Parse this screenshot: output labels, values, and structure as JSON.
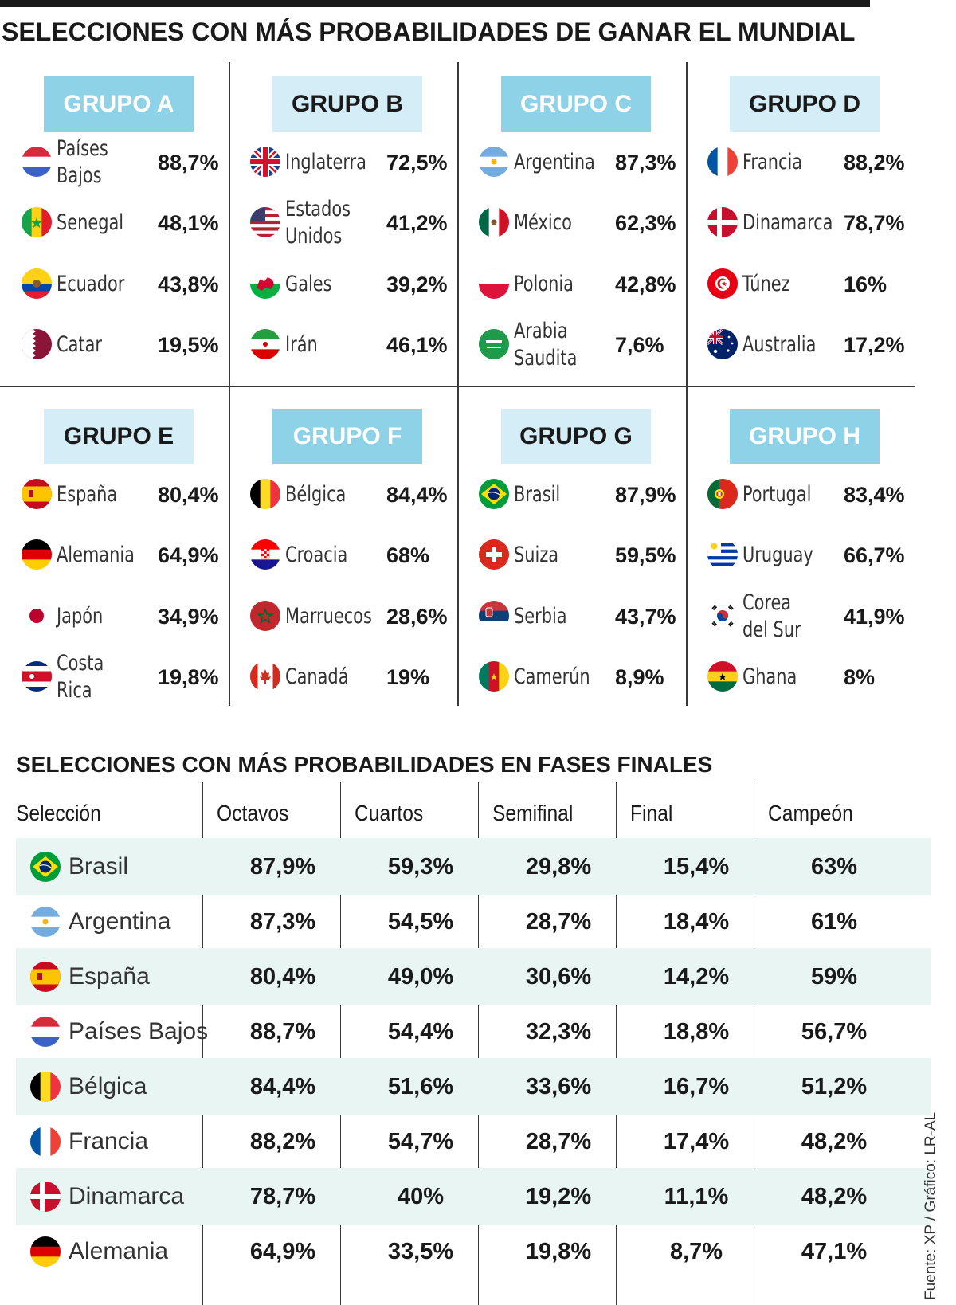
{
  "title": "SELECCIONES CON MÁS PROBABILIDADES DE GANAR EL MUNDIAL",
  "groups": [
    {
      "label": "GRUPO A",
      "style": "dark",
      "teams": [
        {
          "name": "Países Bajos",
          "pct": "88,7%",
          "flag": "netherlands-flag-icon"
        },
        {
          "name": "Senegal",
          "pct": "48,1%",
          "flag": "senegal-flag-icon"
        },
        {
          "name": "Ecuador",
          "pct": "43,8%",
          "flag": "ecuador-flag-icon"
        },
        {
          "name": "Catar",
          "pct": "19,5%",
          "flag": "qatar-flag-icon"
        }
      ]
    },
    {
      "label": "GRUPO B",
      "style": "light",
      "teams": [
        {
          "name": "Inglaterra",
          "pct": "72,5%",
          "flag": "england-flag-icon"
        },
        {
          "name": "Estados\nUnidos",
          "pct": "41,2%",
          "flag": "usa-flag-icon"
        },
        {
          "name": "Gales",
          "pct": "39,2%",
          "flag": "wales-flag-icon"
        },
        {
          "name": "Irán",
          "pct": "46,1%",
          "flag": "iran-flag-icon"
        }
      ]
    },
    {
      "label": "GRUPO C",
      "style": "dark",
      "teams": [
        {
          "name": "Argentina",
          "pct": "87,3%",
          "flag": "argentina-flag-icon"
        },
        {
          "name": "México",
          "pct": "62,3%",
          "flag": "mexico-flag-icon"
        },
        {
          "name": "Polonia",
          "pct": "42,8%",
          "flag": "poland-flag-icon"
        },
        {
          "name": "Arabia\nSaudita",
          "pct": "7,6%",
          "flag": "saudi-arabia-flag-icon"
        }
      ]
    },
    {
      "label": "GRUPO D",
      "style": "light",
      "teams": [
        {
          "name": "Francia",
          "pct": "88,2%",
          "flag": "france-flag-icon"
        },
        {
          "name": "Dinamarca",
          "pct": "78,7%",
          "flag": "denmark-flag-icon"
        },
        {
          "name": "Túnez",
          "pct": "16%",
          "flag": "tunisia-flag-icon"
        },
        {
          "name": "Australia",
          "pct": "17,2%",
          "flag": "australia-flag-icon"
        }
      ]
    },
    {
      "label": "GRUPO E",
      "style": "light",
      "teams": [
        {
          "name": "España",
          "pct": "80,4%",
          "flag": "spain-flag-icon"
        },
        {
          "name": "Alemania",
          "pct": "64,9%",
          "flag": "germany-flag-icon"
        },
        {
          "name": "Japón",
          "pct": "34,9%",
          "flag": "japan-flag-icon"
        },
        {
          "name": "Costa Rica",
          "pct": "19,8%",
          "flag": "costa-rica-flag-icon"
        }
      ]
    },
    {
      "label": "GRUPO F",
      "style": "dark",
      "teams": [
        {
          "name": "Bélgica",
          "pct": "84,4%",
          "flag": "belgium-flag-icon"
        },
        {
          "name": "Croacia",
          "pct": "68%",
          "flag": "croatia-flag-icon"
        },
        {
          "name": "Marruecos",
          "pct": "28,6%",
          "flag": "morocco-flag-icon"
        },
        {
          "name": "Canadá",
          "pct": "19%",
          "flag": "canada-flag-icon"
        }
      ]
    },
    {
      "label": "GRUPO G",
      "style": "light",
      "teams": [
        {
          "name": "Brasil",
          "pct": "87,9%",
          "flag": "brazil-flag-icon"
        },
        {
          "name": "Suiza",
          "pct": "59,5%",
          "flag": "switzerland-flag-icon"
        },
        {
          "name": "Serbia",
          "pct": "43,7%",
          "flag": "serbia-flag-icon"
        },
        {
          "name": "Camerún",
          "pct": "8,9%",
          "flag": "cameroon-flag-icon"
        }
      ]
    },
    {
      "label": "GRUPO H",
      "style": "dark",
      "teams": [
        {
          "name": "Portugal",
          "pct": "83,4%",
          "flag": "portugal-flag-icon"
        },
        {
          "name": "Uruguay",
          "pct": "66,7%",
          "flag": "uruguay-flag-icon"
        },
        {
          "name": "Corea\ndel Sur",
          "pct": "41,9%",
          "flag": "south-korea-flag-icon"
        },
        {
          "name": "Ghana",
          "pct": "8%",
          "flag": "ghana-flag-icon"
        }
      ]
    }
  ],
  "table": {
    "title": "SELECCIONES CON MÁS PROBABILIDADES EN FASES FINALES",
    "columns": [
      "Selección",
      "Octavos",
      "Cuartos",
      "Semifinal",
      "Final",
      "Campeón"
    ],
    "rows": [
      {
        "team": "Brasil",
        "flag": "brazil-flag-icon",
        "values": [
          "87,9%",
          "59,3%",
          "29,8%",
          "15,4%",
          "63%"
        ]
      },
      {
        "team": "Argentina",
        "flag": "argentina-flag-icon",
        "values": [
          "87,3%",
          "54,5%",
          "28,7%",
          "18,4%",
          "61%"
        ]
      },
      {
        "team": "España",
        "flag": "spain-flag-icon",
        "values": [
          "80,4%",
          "49,0%",
          "30,6%",
          "14,2%",
          "59%"
        ]
      },
      {
        "team": "Países Bajos",
        "flag": "netherlands-flag-icon",
        "values": [
          "88,7%",
          "54,4%",
          "32,3%",
          "18,8%",
          "56,7%"
        ]
      },
      {
        "team": "Bélgica",
        "flag": "belgium-flag-icon",
        "values": [
          "84,4%",
          "51,6%",
          "33,6%",
          "16,7%",
          "51,2%"
        ]
      },
      {
        "team": "Francia",
        "flag": "france-flag-icon",
        "values": [
          "88,2%",
          "54,7%",
          "28,7%",
          "17,4%",
          "48,2%"
        ]
      },
      {
        "team": "Dinamarca",
        "flag": "denmark-flag-icon",
        "values": [
          "78,7%",
          "40%",
          "19,2%",
          "11,1%",
          "48,2%"
        ]
      },
      {
        "team": "Alemania",
        "flag": "germany-flag-icon",
        "values": [
          "64,9%",
          "33,5%",
          "19,8%",
          "8,7%",
          "47,1%"
        ]
      }
    ]
  },
  "source": "Fuente: XP / Gráfico: LR-AL",
  "colors": {
    "header_dark": "#8dd2e6",
    "header_light": "#d4edf6",
    "row_shade": "#e8f5f2"
  },
  "chart_data": [
    {
      "type": "table",
      "title": "SELECCIONES CON MÁS PROBABILIDADES DE GANAR EL MUNDIAL",
      "groups": {
        "GRUPO A": {
          "Países Bajos": 88.7,
          "Senegal": 48.1,
          "Ecuador": 43.8,
          "Catar": 19.5
        },
        "GRUPO B": {
          "Inglaterra": 72.5,
          "Estados Unidos": 41.2,
          "Gales": 39.2,
          "Irán": 46.1
        },
        "GRUPO C": {
          "Argentina": 87.3,
          "México": 62.3,
          "Polonia": 42.8,
          "Arabia Saudita": 7.6
        },
        "GRUPO D": {
          "Francia": 88.2,
          "Dinamarca": 78.7,
          "Túnez": 16,
          "Australia": 17.2
        },
        "GRUPO E": {
          "España": 80.4,
          "Alemania": 64.9,
          "Japón": 34.9,
          "Costa Rica": 19.8
        },
        "GRUPO F": {
          "Bélgica": 84.4,
          "Croacia": 68,
          "Marruecos": 28.6,
          "Canadá": 19
        },
        "GRUPO G": {
          "Brasil": 87.9,
          "Suiza": 59.5,
          "Serbia": 43.7,
          "Camerún": 8.9
        },
        "GRUPO H": {
          "Portugal": 83.4,
          "Uruguay": 66.7,
          "Corea del Sur": 41.9,
          "Ghana": 8
        }
      }
    },
    {
      "type": "table",
      "title": "SELECCIONES CON MÁS PROBABILIDADES EN FASES FINALES",
      "categories": [
        "Brasil",
        "Argentina",
        "España",
        "Países Bajos",
        "Bélgica",
        "Francia",
        "Dinamarca",
        "Alemania"
      ],
      "series": [
        {
          "name": "Octavos",
          "values": [
            87.9,
            87.3,
            80.4,
            88.7,
            84.4,
            88.2,
            78.7,
            64.9
          ]
        },
        {
          "name": "Cuartos",
          "values": [
            59.3,
            54.5,
            49.0,
            54.4,
            51.6,
            54.7,
            40,
            33.5
          ]
        },
        {
          "name": "Semifinal",
          "values": [
            29.8,
            28.7,
            30.6,
            32.3,
            33.6,
            28.7,
            19.2,
            19.8
          ]
        },
        {
          "name": "Final",
          "values": [
            15.4,
            18.4,
            14.2,
            18.8,
            16.7,
            17.4,
            11.1,
            8.7
          ]
        },
        {
          "name": "Campeón",
          "values": [
            63,
            61,
            59,
            56.7,
            51.2,
            48.2,
            48.2,
            47.1
          ]
        }
      ]
    }
  ]
}
